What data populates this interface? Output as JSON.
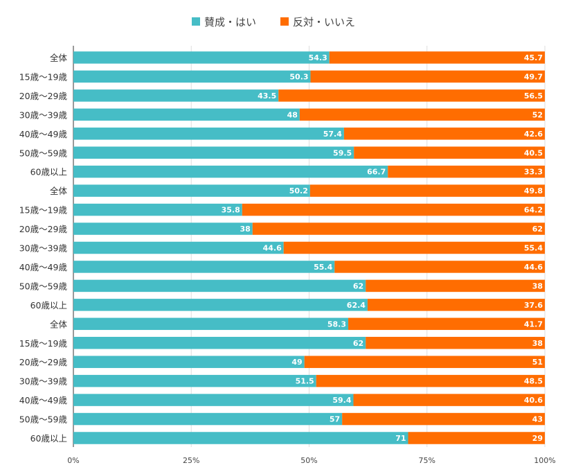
{
  "chart_data": {
    "type": "bar",
    "orientation": "horizontal",
    "stacked": true,
    "legend": {
      "position": "top"
    },
    "categories": [
      "全体",
      "15歳〜19歳",
      "20歳〜29歳",
      "30歳〜39歳",
      "40歳〜49歳",
      "50歳〜59歳",
      "60歳以上",
      "全体",
      "15歳〜19歳",
      "20歳〜29歳",
      "30歳〜39歳",
      "40歳〜49歳",
      "50歳〜59歳",
      "60歳以上",
      "全体",
      "15歳〜19歳",
      "20歳〜29歳",
      "30歳〜39歳",
      "40歳〜49歳",
      "50歳〜59歳",
      "60歳以上"
    ],
    "series": [
      {
        "name": "賛成・はい",
        "color": "#46bdc6",
        "values": [
          54.3,
          50.3,
          43.5,
          48,
          57.4,
          59.5,
          66.7,
          50.2,
          35.8,
          38,
          44.6,
          55.4,
          62,
          62.4,
          58.3,
          62,
          49,
          51.5,
          59.4,
          57,
          71
        ]
      },
      {
        "name": "反対・いいえ",
        "color": "#ff6d01",
        "values": [
          45.7,
          49.7,
          56.5,
          52,
          42.6,
          40.5,
          33.3,
          49.8,
          64.2,
          62,
          55.4,
          44.6,
          38,
          37.6,
          41.7,
          38,
          51,
          48.5,
          40.6,
          43,
          29
        ]
      }
    ],
    "xlim": [
      0,
      100
    ],
    "x_ticks": [
      "0%",
      "25%",
      "50%",
      "75%",
      "100%"
    ],
    "grid": true
  }
}
